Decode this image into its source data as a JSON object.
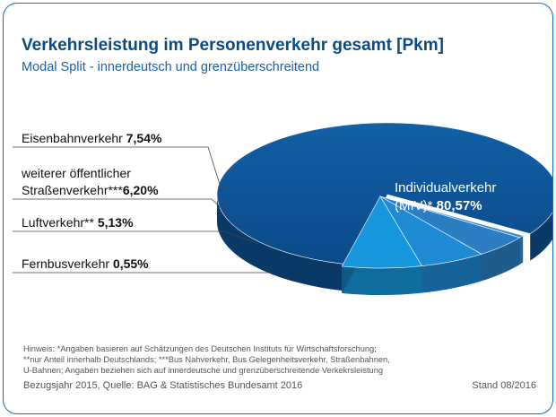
{
  "chart_data": {
    "type": "pie",
    "title": "Verkehrsleistung im Personenverkehr gesamt [Pkm]",
    "subtitle": "Modal Split - innerdeutsch und grenzüberschreitend",
    "slices": [
      {
        "label_line1": "Individualverkehr",
        "label_line2_prefix": "(MIV)* ",
        "value": 80.57,
        "value_text": "80,57%",
        "color": "#0d4f8f"
      },
      {
        "label": "Fernbusverkehr",
        "value": 0.55,
        "value_text": "0,55%",
        "color": "#3a8bd0"
      },
      {
        "label": "Luftverkehr**",
        "value": 5.13,
        "value_text": "5,13%",
        "color": "#2c7ec4"
      },
      {
        "label_line1": "weiterer öffentlicher",
        "label_line2_prefix": "Straßenverkehr***",
        "value": 6.2,
        "value_text": "6,20%",
        "color": "#1e8ad4"
      },
      {
        "label": "Eisenbahnverkehr",
        "value": 7.54,
        "value_text": "7,54%",
        "color": "#1596dd"
      }
    ]
  },
  "notes": [
    "Hinweis: *Angaben basieren auf Schätzungen des Deutschen Instituts für Wirtschaftsforschung;",
    "**nur Anteil innerhalb Deutschlands; ***Bus Nahverkehr, Bus Gelegenheitsverkehr, Straßenbahnen,",
    "U-Bahnen; Angaben beziehen sich auf  innerdeutsche und grenzüberschreitende Verkekrsleistung"
  ],
  "source": "Bezugsjahr 2015, Quelle: BAG & Statistisches Bundesamt 2016",
  "stand": "Stand 08/2016"
}
